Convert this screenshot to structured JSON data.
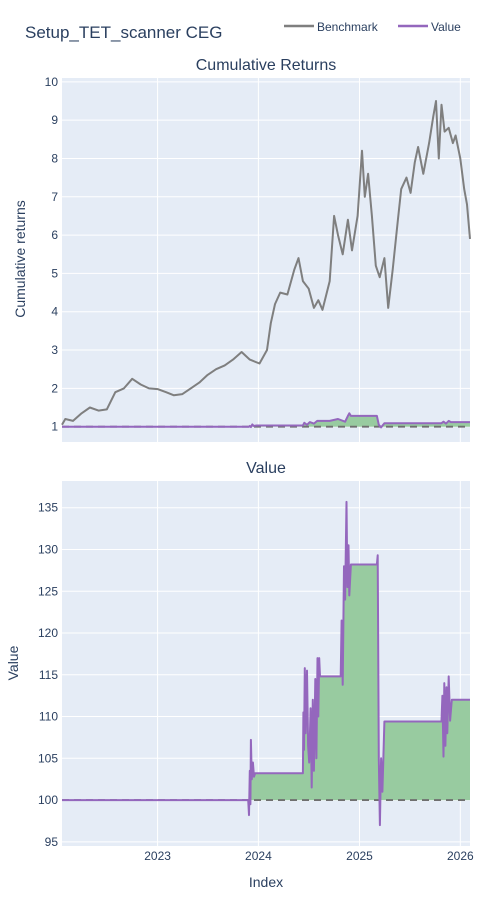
{
  "figure_title": "Setup_TET_scanner CEG",
  "legend": [
    {
      "name": "Benchmark",
      "color": "#7f7f7f"
    },
    {
      "name": "Value",
      "color": "#9467bd"
    }
  ],
  "colors": {
    "plot_bg": "#e5ecf6",
    "grid": "#ffffff",
    "fill": "#98cba0",
    "baseline": "#6f6f6f",
    "text": "#2a3f5f"
  },
  "chart_data": [
    {
      "type": "line",
      "title": "Cumulative Returns",
      "ylabel": "Cumulative returns",
      "ylim": [
        0.6,
        10.1
      ],
      "yticks": [
        1,
        2,
        3,
        4,
        5,
        6,
        7,
        8,
        9,
        10
      ],
      "xlim": [
        "2022-01-20",
        "2026-02-05"
      ],
      "baseline": 1,
      "series": [
        {
          "name": "Benchmark",
          "points": [
            [
              "2022-01-20",
              1.05
            ],
            [
              "2022-02-01",
              1.2
            ],
            [
              "2022-03-01",
              1.15
            ],
            [
              "2022-04-01",
              1.35
            ],
            [
              "2022-05-01",
              1.5
            ],
            [
              "2022-06-01",
              1.42
            ],
            [
              "2022-07-01",
              1.45
            ],
            [
              "2022-08-01",
              1.9
            ],
            [
              "2022-09-01",
              2.0
            ],
            [
              "2022-10-01",
              2.25
            ],
            [
              "2022-11-01",
              2.1
            ],
            [
              "2022-12-01",
              2.0
            ],
            [
              "2023-01-01",
              1.98
            ],
            [
              "2023-02-01",
              1.9
            ],
            [
              "2023-03-01",
              1.82
            ],
            [
              "2023-04-01",
              1.85
            ],
            [
              "2023-05-01",
              2.0
            ],
            [
              "2023-06-01",
              2.15
            ],
            [
              "2023-07-01",
              2.35
            ],
            [
              "2023-08-01",
              2.5
            ],
            [
              "2023-09-01",
              2.6
            ],
            [
              "2023-10-01",
              2.75
            ],
            [
              "2023-11-01",
              2.95
            ],
            [
              "2023-12-01",
              2.75
            ],
            [
              "2024-01-05",
              2.65
            ],
            [
              "2024-02-01",
              3.0
            ],
            [
              "2024-02-15",
              3.7
            ],
            [
              "2024-03-01",
              4.2
            ],
            [
              "2024-03-20",
              4.5
            ],
            [
              "2024-04-15",
              4.45
            ],
            [
              "2024-05-10",
              5.1
            ],
            [
              "2024-05-25",
              5.4
            ],
            [
              "2024-06-10",
              4.8
            ],
            [
              "2024-07-01",
              4.6
            ],
            [
              "2024-07-20",
              4.1
            ],
            [
              "2024-08-05",
              4.3
            ],
            [
              "2024-08-20",
              4.05
            ],
            [
              "2024-09-15",
              4.8
            ],
            [
              "2024-10-01",
              6.5
            ],
            [
              "2024-10-15",
              6.0
            ],
            [
              "2024-11-01",
              5.5
            ],
            [
              "2024-11-20",
              6.4
            ],
            [
              "2024-12-05",
              5.6
            ],
            [
              "2024-12-25",
              6.5
            ],
            [
              "2025-01-10",
              8.2
            ],
            [
              "2025-01-20",
              7.0
            ],
            [
              "2025-02-01",
              7.6
            ],
            [
              "2025-02-15",
              6.5
            ],
            [
              "2025-03-01",
              5.2
            ],
            [
              "2025-03-15",
              4.9
            ],
            [
              "2025-04-01",
              5.4
            ],
            [
              "2025-04-15",
              4.1
            ],
            [
              "2025-05-01",
              5.1
            ],
            [
              "2025-05-20",
              6.4
            ],
            [
              "2025-06-01",
              7.2
            ],
            [
              "2025-06-20",
              7.5
            ],
            [
              "2025-07-05",
              7.1
            ],
            [
              "2025-07-20",
              7.9
            ],
            [
              "2025-08-01",
              8.3
            ],
            [
              "2025-08-20",
              7.6
            ],
            [
              "2025-09-10",
              8.4
            ],
            [
              "2025-09-25",
              9.1
            ],
            [
              "2025-10-05",
              9.5
            ],
            [
              "2025-10-15",
              8.0
            ],
            [
              "2025-10-25",
              9.4
            ],
            [
              "2025-11-05",
              8.7
            ],
            [
              "2025-11-20",
              8.8
            ],
            [
              "2025-12-05",
              8.4
            ],
            [
              "2025-12-15",
              8.6
            ],
            [
              "2026-01-01",
              8.0
            ],
            [
              "2026-01-15",
              7.2
            ],
            [
              "2026-01-25",
              6.8
            ],
            [
              "2026-02-05",
              5.9
            ]
          ]
        },
        {
          "name": "Value",
          "points": [
            [
              "2022-01-20",
              1.0
            ],
            [
              "2023-11-28",
              1.0
            ],
            [
              "2023-12-01",
              1.02
            ],
            [
              "2023-12-05",
              0.99
            ],
            [
              "2023-12-10",
              1.06
            ],
            [
              "2023-12-15",
              1.02
            ],
            [
              "2023-12-25",
              1.03
            ],
            [
              "2024-06-10",
              1.03
            ],
            [
              "2024-06-15",
              1.1
            ],
            [
              "2024-06-25",
              1.05
            ],
            [
              "2024-07-05",
              1.12
            ],
            [
              "2024-07-20",
              1.08
            ],
            [
              "2024-08-01",
              1.15
            ],
            [
              "2024-09-15",
              1.15
            ],
            [
              "2024-10-15",
              1.2
            ],
            [
              "2024-11-10",
              1.13
            ],
            [
              "2024-11-20",
              1.28
            ],
            [
              "2024-11-25",
              1.35
            ],
            [
              "2024-12-01",
              1.28
            ],
            [
              "2025-03-05",
              1.28
            ],
            [
              "2025-03-12",
              1.05
            ],
            [
              "2025-03-20",
              0.98
            ],
            [
              "2025-04-01",
              1.09
            ],
            [
              "2025-10-25",
              1.09
            ],
            [
              "2025-11-01",
              1.13
            ],
            [
              "2025-11-10",
              1.08
            ],
            [
              "2025-11-20",
              1.15
            ],
            [
              "2025-11-28",
              1.12
            ],
            [
              "2026-02-05",
              1.12
            ]
          ]
        }
      ]
    },
    {
      "type": "area",
      "title": "Value",
      "ylabel": "Value",
      "xlabel": "Index",
      "ylim": [
        94.5,
        138.2
      ],
      "yticks": [
        95,
        100,
        105,
        110,
        115,
        120,
        125,
        130,
        135
      ],
      "xlim": [
        "2022-01-20",
        "2026-02-05"
      ],
      "xticks": [
        {
          "date": "2023-01-01",
          "label": "2023"
        },
        {
          "date": "2024-01-01",
          "label": "2024"
        },
        {
          "date": "2025-01-01",
          "label": "2025"
        },
        {
          "date": "2026-01-01",
          "label": "2026"
        }
      ],
      "baseline": 100,
      "series": [
        {
          "name": "Value",
          "points": [
            [
              "2022-01-20",
              100.0
            ],
            [
              "2023-11-25",
              100.0
            ],
            [
              "2023-11-28",
              98.2
            ],
            [
              "2023-12-01",
              103.5
            ],
            [
              "2023-12-03",
              99.5
            ],
            [
              "2023-12-05",
              107.2
            ],
            [
              "2023-12-08",
              102.5
            ],
            [
              "2023-12-12",
              104.5
            ],
            [
              "2023-12-16",
              102.8
            ],
            [
              "2023-12-20",
              103.2
            ],
            [
              "2024-06-10",
              103.2
            ],
            [
              "2024-06-12",
              110.5
            ],
            [
              "2024-06-14",
              106.0
            ],
            [
              "2024-06-17",
              115.8
            ],
            [
              "2024-06-20",
              108.0
            ],
            [
              "2024-06-25",
              115.5
            ],
            [
              "2024-06-29",
              106.5
            ],
            [
              "2024-07-03",
              104.5
            ],
            [
              "2024-07-08",
              111.0
            ],
            [
              "2024-07-12",
              101.5
            ],
            [
              "2024-07-16",
              112.0
            ],
            [
              "2024-07-20",
              103.5
            ],
            [
              "2024-07-25",
              114.5
            ],
            [
              "2024-07-29",
              105.0
            ],
            [
              "2024-08-02",
              117.0
            ],
            [
              "2024-08-05",
              110.0
            ],
            [
              "2024-08-08",
              117.0
            ],
            [
              "2024-08-11",
              114.8
            ],
            [
              "2024-10-25",
              114.8
            ],
            [
              "2024-10-28",
              121.5
            ],
            [
              "2024-11-01",
              113.8
            ],
            [
              "2024-11-06",
              128.0
            ],
            [
              "2024-11-10",
              124.0
            ],
            [
              "2024-11-15",
              135.7
            ],
            [
              "2024-11-18",
              125.5
            ],
            [
              "2024-11-22",
              130.5
            ],
            [
              "2024-11-25",
              124.5
            ],
            [
              "2024-12-01",
              128.2
            ],
            [
              "2025-03-05",
              128.2
            ],
            [
              "2025-03-08",
              129.3
            ],
            [
              "2025-03-12",
              105.0
            ],
            [
              "2025-03-16",
              97.0
            ],
            [
              "2025-03-20",
              105.0
            ],
            [
              "2025-03-25",
              101.0
            ],
            [
              "2025-04-01",
              109.4
            ],
            [
              "2025-10-25",
              109.4
            ],
            [
              "2025-10-28",
              112.5
            ],
            [
              "2025-11-01",
              105.2
            ],
            [
              "2025-11-04",
              114.0
            ],
            [
              "2025-11-08",
              106.5
            ],
            [
              "2025-11-12",
              113.5
            ],
            [
              "2025-11-15",
              108.0
            ],
            [
              "2025-11-20",
              114.8
            ],
            [
              "2025-11-25",
              109.5
            ],
            [
              "2025-12-01",
              112.0
            ],
            [
              "2026-02-05",
              112.0
            ]
          ]
        }
      ]
    }
  ]
}
